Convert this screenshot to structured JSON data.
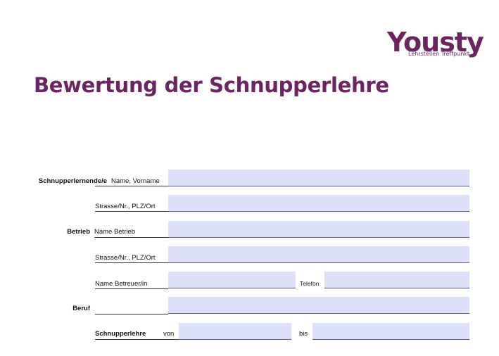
{
  "logo": {
    "brand": "Yousty",
    "tagline": "Lehrstellen Treffpunkt"
  },
  "title": "Bewertung der Schnupperlehre",
  "rows": [
    {
      "section": "Schnupperlernende/e",
      "label": "Name, Vorname"
    },
    {
      "label": "Strasse/Nr., PLZ/Ort"
    },
    {
      "section": "Betrieb",
      "label": "Name Betrieb"
    },
    {
      "label": "Strasse/Nr., PLZ/Ort"
    },
    {
      "label": "Name Betreuer/in",
      "label2": "Telefon"
    },
    {
      "section": "Beruf"
    },
    {
      "label": "Schnupperlehre",
      "label_from": "von",
      "label2": "bis"
    }
  ]
}
